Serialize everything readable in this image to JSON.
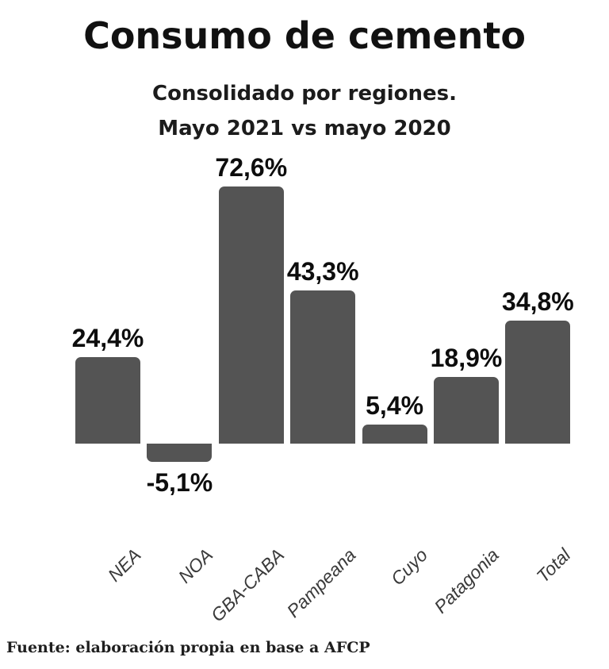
{
  "title": "Consumo de cemento",
  "subtitle_line1": "Consolidado por regiones.",
  "subtitle_line2": "Mayo 2021 vs mayo 2020",
  "source": "Fuente: elaboración propia en base a AFCP",
  "colors": {
    "bar": "#545454",
    "value_label": "#0d0d0d",
    "category_label": "#3a3a3a",
    "background": "#ffffff"
  },
  "chart_data": {
    "type": "bar",
    "title": "Consumo de cemento",
    "subtitle": "Consolidado por regiones. Mayo 2021 vs mayo 2020",
    "categories": [
      "NEA",
      "NOA",
      "GBA-CABA",
      "Pampeana",
      "Cuyo",
      "Patagonia",
      "Total"
    ],
    "values": [
      24.4,
      -5.1,
      72.6,
      43.3,
      5.4,
      18.9,
      34.8
    ],
    "value_labels": [
      "24,4%",
      "-5,1%",
      "72,6%",
      "43,3%",
      "5,4%",
      "18,9%",
      "34,8%"
    ],
    "unit": "%",
    "xlabel": "",
    "ylabel": "",
    "ylim": [
      -10,
      80
    ],
    "grid": false,
    "legend": false,
    "source": "Fuente: elaboración propia en base a AFCP"
  }
}
